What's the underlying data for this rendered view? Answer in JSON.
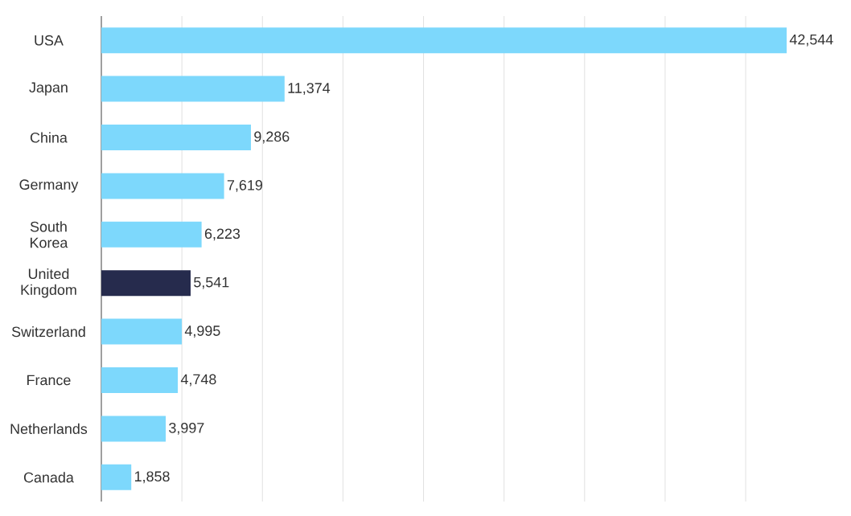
{
  "chart_data": {
    "type": "bar",
    "orientation": "horizontal",
    "categories": [
      "USA",
      "Japan",
      "China",
      "Germany",
      "South Korea",
      "United Kingdom",
      "Switzerland",
      "France",
      "Netherlands",
      "Canada"
    ],
    "values": [
      42544,
      11374,
      9286,
      7619,
      6223,
      5541,
      4995,
      4748,
      3997,
      1858
    ],
    "value_labels": [
      "42,544",
      "11,374",
      "9,286",
      "7,619",
      "6,223",
      "5,541",
      "4,995",
      "4,748",
      "3,997",
      "1,858"
    ],
    "colors": [
      "#7dd8fc",
      "#7dd8fc",
      "#7dd8fc",
      "#7dd8fc",
      "#7dd8fc",
      "#262b4d",
      "#7dd8fc",
      "#7dd8fc",
      "#7dd8fc",
      "#7dd8fc"
    ],
    "tick_labels": "y",
    "grid": "x"
  }
}
